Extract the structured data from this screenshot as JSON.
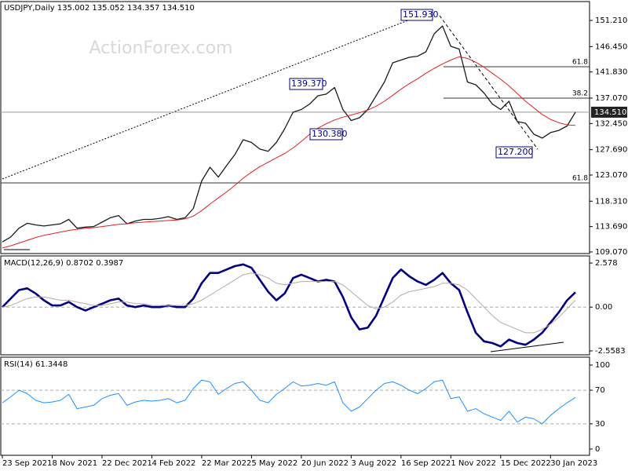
{
  "chart_data": [
    {
      "type": "line",
      "title": "USDJPY,Daily  135.002 135.052 134.357 134.510",
      "watermark": "ActionForex.com",
      "ylim": [
        108.78,
        154.5
      ],
      "yticks": [
        {
          "value": 151.21,
          "label": "151.210"
        },
        {
          "value": 146.45,
          "label": "146.450"
        },
        {
          "value": 141.83,
          "label": "141.830"
        },
        {
          "value": 137.07,
          "label": "137.070"
        },
        {
          "value": 132.45,
          "label": "132.450"
        },
        {
          "value": 127.69,
          "label": "127.690"
        },
        {
          "value": 123.07,
          "label": "123.070"
        },
        {
          "value": 118.31,
          "label": "118.310"
        },
        {
          "value": 113.69,
          "label": "113.690"
        },
        {
          "value": 109.07,
          "label": "109.070"
        }
      ],
      "series": [
        {
          "color": "#1a1a1a",
          "values": [
            110.9,
            111.8,
            113.4,
            114.3,
            114.0,
            113.8,
            114.0,
            114.2,
            115.0,
            113.4,
            113.6,
            113.7,
            114.5,
            115.3,
            115.7,
            114.2,
            114.7,
            115.0,
            115.0,
            115.2,
            115.5,
            115.0,
            115.3,
            117.0,
            122.0,
            124.5,
            122.7,
            124.8,
            126.8,
            129.5,
            129.0,
            127.8,
            127.4,
            129.0,
            131.5,
            134.5,
            135.0,
            136.0,
            137.5,
            137.8,
            139.0,
            135.0,
            133.0,
            133.5,
            135.0,
            137.5,
            140.0,
            143.5,
            144.0,
            144.5,
            144.7,
            145.5,
            148.8,
            150.2,
            146.5,
            146.0,
            140.0,
            139.5,
            138.0,
            136.0,
            135.0,
            136.5,
            132.8,
            132.5,
            130.5,
            129.8,
            130.8,
            131.2,
            132.0,
            134.51
          ]
        },
        {
          "color": "#e02020",
          "values": [
            109.8,
            110.2,
            110.7,
            111.2,
            111.7,
            112.1,
            112.4,
            112.7,
            113.0,
            113.2,
            113.4,
            113.5,
            113.7,
            113.9,
            114.1,
            114.2,
            114.4,
            114.5,
            114.6,
            114.7,
            114.8,
            114.9,
            115.1,
            115.6,
            116.6,
            117.8,
            118.9,
            120.0,
            121.2,
            122.5,
            123.6,
            124.6,
            125.4,
            126.2,
            127.0,
            128.0,
            129.2,
            130.5,
            131.6,
            132.4,
            133.1,
            133.6,
            134.0,
            134.4,
            134.9,
            135.6,
            136.5,
            137.6,
            138.7,
            139.7,
            140.6,
            141.6,
            142.5,
            143.3,
            144.0,
            144.6,
            144.3,
            143.6,
            142.7,
            141.6,
            140.5,
            139.3,
            137.9,
            136.5,
            135.3,
            134.1,
            133.2,
            132.6,
            132.2,
            132.1
          ]
        }
      ],
      "last": {
        "value": 134.51,
        "label": "134.510"
      },
      "levels": [
        {
          "value": 142.78,
          "label": "61.8"
        },
        {
          "value": 137.07,
          "label": "38.2"
        },
        {
          "value": 121.64,
          "label": "61.8"
        }
      ],
      "annotations": [
        "151.930",
        "139.370",
        "130.380",
        "127.200"
      ]
    },
    {
      "type": "line",
      "title": "MACD(12,26,9) 0.8702 0.3987",
      "ylim": [
        -2.79,
        2.95
      ],
      "yticks": [
        2.578,
        {
          "value": 0,
          "label": "0.00"
        },
        -2.5583
      ],
      "hlines": [
        0
      ],
      "series": [
        {
          "color": "#000080",
          "values": [
            0.0,
            0.5,
            1.0,
            1.1,
            0.8,
            0.4,
            0.1,
            0.1,
            0.3,
            0.0,
            -0.2,
            0.0,
            0.2,
            0.4,
            0.5,
            0.1,
            0.0,
            0.1,
            0.0,
            0.0,
            0.1,
            0.0,
            0.0,
            0.5,
            1.4,
            2.0,
            2.0,
            2.2,
            2.4,
            2.5,
            2.3,
            1.6,
            0.9,
            0.4,
            0.8,
            1.7,
            1.9,
            1.7,
            1.5,
            1.6,
            1.5,
            0.6,
            -0.6,
            -1.3,
            -1.2,
            -0.5,
            0.6,
            1.7,
            2.2,
            1.8,
            1.5,
            1.3,
            1.6,
            2.0,
            1.4,
            1.0,
            -0.3,
            -1.5,
            -2.0,
            -2.1,
            -2.3,
            -1.9,
            -2.1,
            -2.2,
            -1.9,
            -1.5,
            -0.9,
            -0.3,
            0.4,
            0.87
          ]
        },
        {
          "color": "#b8a8a8",
          "values": [
            0.0,
            0.1,
            0.3,
            0.5,
            0.6,
            0.6,
            0.5,
            0.4,
            0.4,
            0.3,
            0.2,
            0.1,
            0.1,
            0.2,
            0.3,
            0.3,
            0.2,
            0.2,
            0.1,
            0.1,
            0.1,
            0.1,
            0.1,
            0.2,
            0.4,
            0.7,
            1.0,
            1.3,
            1.6,
            1.9,
            2.0,
            1.9,
            1.7,
            1.4,
            1.3,
            1.4,
            1.5,
            1.5,
            1.5,
            1.5,
            1.5,
            1.3,
            0.9,
            0.5,
            0.1,
            -0.1,
            0.0,
            0.3,
            0.7,
            0.9,
            1.0,
            1.1,
            1.2,
            1.4,
            1.4,
            1.3,
            1.0,
            0.5,
            0.0,
            -0.5,
            -0.9,
            -1.1,
            -1.3,
            -1.5,
            -1.5,
            -1.3,
            -1.0,
            -0.6,
            -0.1,
            0.4
          ]
        }
      ]
    },
    {
      "type": "line",
      "title": "RSI(14) 61.3448",
      "ylim": [
        -7.5,
        108.4
      ],
      "yticks": [
        100,
        70,
        30,
        0
      ],
      "hlines": [
        70,
        30
      ],
      "series": [
        {
          "color": "#1e90ff",
          "values": [
            55,
            62,
            70,
            66,
            58,
            55,
            56,
            58,
            65,
            48,
            50,
            52,
            60,
            64,
            66,
            52,
            56,
            58,
            57,
            58,
            60,
            55,
            58,
            72,
            82,
            80,
            65,
            72,
            78,
            80,
            70,
            58,
            55,
            65,
            72,
            80,
            75,
            76,
            78,
            76,
            80,
            55,
            45,
            50,
            60,
            70,
            78,
            80,
            76,
            70,
            66,
            72,
            80,
            82,
            60,
            62,
            45,
            48,
            42,
            38,
            34,
            45,
            32,
            38,
            36,
            30,
            40,
            48,
            55,
            61.34
          ]
        }
      ],
      "categories": [
        "23 Sep 2021",
        null,
        null,
        null,
        null,
        null,
        "8 Nov 2021",
        null,
        null,
        null,
        null,
        null,
        "22 Dec 2021",
        null,
        null,
        null,
        null,
        null,
        "4 Feb 2022",
        null,
        null,
        null,
        null,
        null,
        "22 Mar 2022",
        null,
        null,
        null,
        null,
        null,
        "5 May 2022",
        null,
        null,
        null,
        null,
        null,
        "20 Jun 2022",
        null,
        null,
        null,
        null,
        null,
        "3 Aug 2022",
        null,
        null,
        null,
        null,
        null,
        "16 Sep 2022",
        null,
        null,
        null,
        null,
        null,
        "1 Nov 2022",
        null,
        null,
        null,
        null,
        null,
        "15 Dec 2022",
        null,
        null,
        null,
        null,
        null,
        "30 Jan 2023",
        null,
        null,
        null
      ]
    }
  ]
}
